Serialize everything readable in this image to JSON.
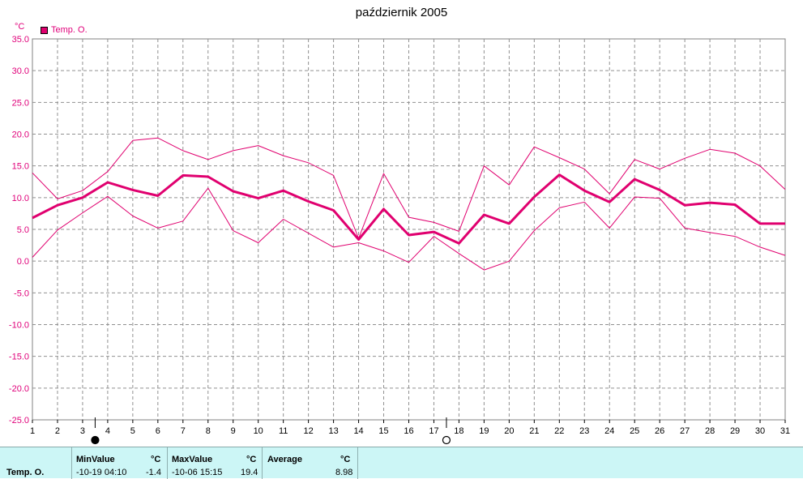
{
  "colors": {
    "series": "#e0006f",
    "axis_text": "#e0007a",
    "stats_bg": "#ccf6f6"
  },
  "chart_data": {
    "type": "line",
    "title": "październik 2005",
    "ylabel": "°C",
    "xlabel": "",
    "ylim": [
      -25,
      35
    ],
    "yticks": [
      "35.0",
      "30.0",
      "25.0",
      "20.0",
      "15.0",
      "10.0",
      "5.0",
      "0.0",
      "-5.0",
      "-10.0",
      "-15.0",
      "-20.0",
      "-25.0"
    ],
    "x": [
      1,
      2,
      3,
      4,
      5,
      6,
      7,
      8,
      9,
      10,
      11,
      12,
      13,
      14,
      15,
      16,
      17,
      18,
      19,
      20,
      21,
      22,
      23,
      24,
      25,
      26,
      27,
      28,
      29,
      30,
      31
    ],
    "grid": true,
    "legend": "top-left",
    "series": [
      {
        "name": "Temp. O.",
        "role": "average",
        "values": [
          6.8,
          8.8,
          10.0,
          12.4,
          11.2,
          10.3,
          13.5,
          13.3,
          11.0,
          9.9,
          11.1,
          9.4,
          8.0,
          3.4,
          8.2,
          4.1,
          4.6,
          2.8,
          7.3,
          5.9,
          10.1,
          13.6,
          11.1,
          9.3,
          12.9,
          11.2,
          8.8,
          9.2,
          8.9,
          5.9,
          5.9
        ]
      },
      {
        "role": "max",
        "values": [
          13.9,
          9.8,
          11.1,
          14.1,
          19.0,
          19.4,
          17.4,
          16.0,
          17.4,
          18.2,
          16.6,
          15.5,
          13.5,
          3.6,
          13.8,
          6.9,
          6.1,
          4.7,
          15.0,
          12.0,
          18.0,
          16.3,
          14.5,
          10.6,
          16.0,
          14.5,
          16.2,
          17.6,
          17.0,
          15.0,
          11.3
        ]
      },
      {
        "role": "min",
        "values": [
          0.6,
          4.9,
          7.6,
          10.2,
          7.1,
          5.2,
          6.3,
          11.5,
          4.8,
          2.9,
          6.6,
          4.4,
          2.2,
          2.9,
          1.6,
          -0.2,
          3.9,
          1.2,
          -1.4,
          0.0,
          4.8,
          8.4,
          9.3,
          5.2,
          10.1,
          9.9,
          5.2,
          4.5,
          3.9,
          2.2,
          0.9
        ]
      }
    ],
    "markers": [
      {
        "x": 3.5,
        "shape": "filled-circle"
      },
      {
        "x": 17.5,
        "shape": "open-circle"
      }
    ]
  },
  "stats": {
    "row_label": "Temp. O.",
    "min": {
      "header": "MinValue",
      "unit": "°C",
      "when": "-10-19  04:10",
      "value": "-1.4"
    },
    "max": {
      "header": "MaxValue",
      "unit": "°C",
      "when": "-10-06  15:15",
      "value": "19.4"
    },
    "avg": {
      "header": "Average",
      "unit": "°C",
      "value": "8.98"
    }
  }
}
